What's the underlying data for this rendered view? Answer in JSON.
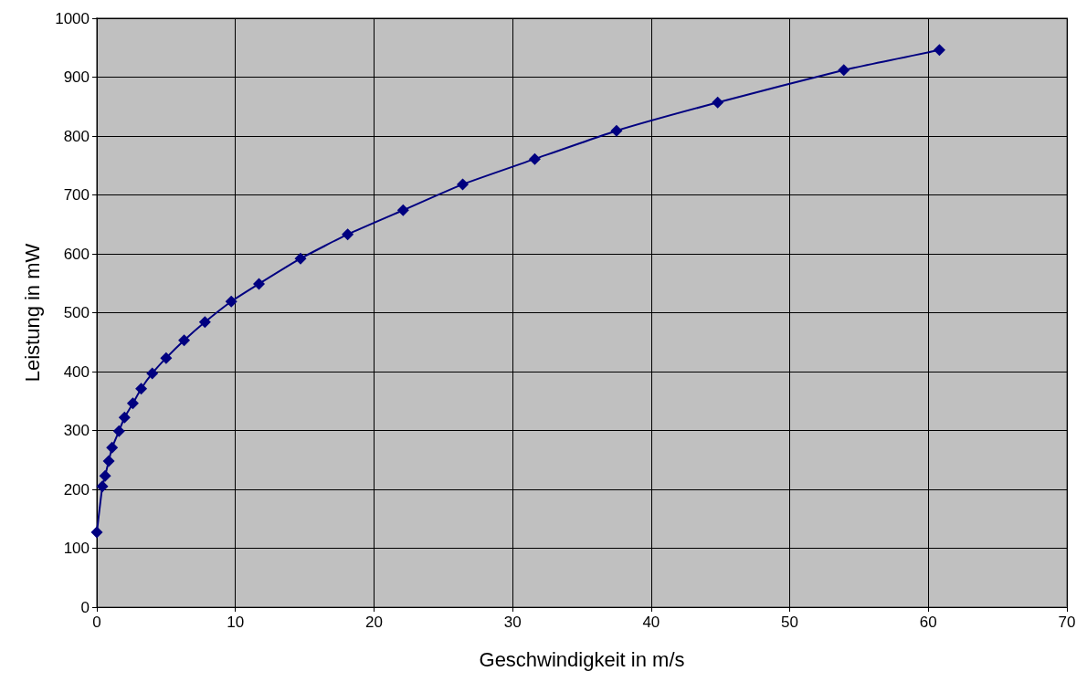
{
  "chart_data": {
    "type": "line",
    "xlabel": "Geschwindigkeit in m/s",
    "ylabel": "Leistung in mW",
    "x": [
      0,
      0.4,
      0.6,
      0.86,
      1.1,
      1.6,
      2.0,
      2.6,
      3.2,
      4.0,
      5.0,
      6.3,
      7.8,
      9.7,
      11.7,
      14.7,
      18.1,
      22.1,
      26.4,
      31.6,
      37.5,
      44.8,
      53.9,
      60.8
    ],
    "series": [
      {
        "color": "#000080",
        "values": [
          127,
          205,
          223,
          248,
          271,
          299,
          322,
          346,
          371,
          397,
          423,
          453,
          484,
          519,
          549,
          592,
          633,
          674,
          718,
          761,
          809,
          857,
          912,
          946
        ]
      }
    ],
    "xlim": [
      0,
      70
    ],
    "xticks": [
      0,
      10,
      20,
      30,
      40,
      50,
      60,
      70
    ],
    "ylim": [
      0,
      1000
    ],
    "yticks": [
      0,
      100,
      200,
      300,
      400,
      500,
      600,
      700,
      800,
      900,
      1000
    ],
    "grid": true,
    "marker": "diamond",
    "line_style": "solid"
  }
}
